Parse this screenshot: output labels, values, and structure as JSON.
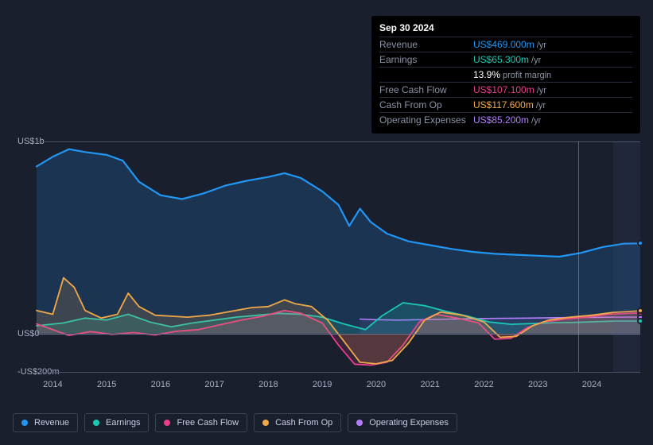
{
  "tooltip": {
    "title": "Sep 30 2024",
    "rows": [
      {
        "label": "Revenue",
        "value": "US$469.000m",
        "color": "#2196f3",
        "suffix": "/yr"
      },
      {
        "label": "Earnings",
        "value": "US$65.300m",
        "color": "#1bc6b4",
        "suffix": "/yr"
      },
      {
        "label": "",
        "value": "13.9%",
        "color": "#ffffff",
        "suffix": "profit margin"
      },
      {
        "label": "Free Cash Flow",
        "value": "US$107.100m",
        "color": "#e83e8c",
        "suffix": "/yr"
      },
      {
        "label": "Cash From Op",
        "value": "US$117.600m",
        "color": "#f0a848",
        "suffix": "/yr"
      },
      {
        "label": "Operating Expenses",
        "value": "US$85.200m",
        "color": "#b47cff",
        "suffix": "/yr"
      }
    ]
  },
  "chart": {
    "background": "#1a1f2e",
    "y_min": -200,
    "y_max": 1000,
    "y_ticks": [
      {
        "v": 1000,
        "label": "US$1b"
      },
      {
        "v": 0,
        "label": "US$0"
      },
      {
        "v": -200,
        "label": "-US$200m"
      }
    ],
    "x_min": 2013.7,
    "x_max": 2024.9,
    "x_ticks": [
      2014,
      2015,
      2016,
      2017,
      2018,
      2019,
      2020,
      2021,
      2022,
      2023,
      2024
    ],
    "future_start": 2024.4,
    "ref_x": 2023.75,
    "series": [
      {
        "name": "Revenue",
        "color": "#2196f3",
        "fill": "rgba(33,150,243,0.18)",
        "width": 2.2,
        "points": [
          [
            2013.7,
            870
          ],
          [
            2014.0,
            920
          ],
          [
            2014.3,
            960
          ],
          [
            2014.6,
            945
          ],
          [
            2015.0,
            930
          ],
          [
            2015.3,
            900
          ],
          [
            2015.6,
            790
          ],
          [
            2016.0,
            720
          ],
          [
            2016.4,
            700
          ],
          [
            2016.8,
            730
          ],
          [
            2017.2,
            770
          ],
          [
            2017.6,
            795
          ],
          [
            2018.0,
            815
          ],
          [
            2018.3,
            835
          ],
          [
            2018.6,
            810
          ],
          [
            2019.0,
            740
          ],
          [
            2019.3,
            670
          ],
          [
            2019.5,
            560
          ],
          [
            2019.7,
            650
          ],
          [
            2019.9,
            580
          ],
          [
            2020.2,
            520
          ],
          [
            2020.6,
            480
          ],
          [
            2021.0,
            460
          ],
          [
            2021.4,
            440
          ],
          [
            2021.8,
            425
          ],
          [
            2022.2,
            415
          ],
          [
            2022.6,
            410
          ],
          [
            2023.0,
            405
          ],
          [
            2023.4,
            400
          ],
          [
            2023.8,
            420
          ],
          [
            2024.2,
            450
          ],
          [
            2024.6,
            468
          ],
          [
            2024.9,
            469
          ]
        ]
      },
      {
        "name": "Operating Expenses",
        "color": "#b47cff",
        "fill": "rgba(180,124,255,0.10)",
        "width": 1.6,
        "points": [
          [
            2019.7,
            75
          ],
          [
            2020.0,
            72
          ],
          [
            2020.4,
            70
          ],
          [
            2020.8,
            72
          ],
          [
            2021.2,
            74
          ],
          [
            2021.6,
            76
          ],
          [
            2022.0,
            78
          ],
          [
            2022.4,
            79
          ],
          [
            2022.8,
            80
          ],
          [
            2023.2,
            82
          ],
          [
            2023.6,
            83
          ],
          [
            2024.0,
            84
          ],
          [
            2024.4,
            85
          ],
          [
            2024.9,
            85
          ]
        ]
      },
      {
        "name": "Earnings",
        "color": "#1bc6b4",
        "fill": "rgba(27,198,180,0.18)",
        "width": 1.8,
        "points": [
          [
            2013.7,
            40
          ],
          [
            2014.2,
            55
          ],
          [
            2014.6,
            80
          ],
          [
            2015.0,
            70
          ],
          [
            2015.4,
            100
          ],
          [
            2015.8,
            60
          ],
          [
            2016.2,
            35
          ],
          [
            2016.6,
            55
          ],
          [
            2017.0,
            70
          ],
          [
            2017.4,
            85
          ],
          [
            2017.8,
            95
          ],
          [
            2018.2,
            105
          ],
          [
            2018.6,
            100
          ],
          [
            2019.0,
            85
          ],
          [
            2019.4,
            50
          ],
          [
            2019.8,
            20
          ],
          [
            2020.1,
            90
          ],
          [
            2020.5,
            160
          ],
          [
            2020.9,
            145
          ],
          [
            2021.3,
            115
          ],
          [
            2021.7,
            90
          ],
          [
            2022.1,
            60
          ],
          [
            2022.5,
            48
          ],
          [
            2022.9,
            52
          ],
          [
            2023.3,
            56
          ],
          [
            2023.7,
            58
          ],
          [
            2024.1,
            62
          ],
          [
            2024.5,
            65
          ],
          [
            2024.9,
            65
          ]
        ]
      },
      {
        "name": "Free Cash Flow",
        "color": "#e83e8c",
        "fill": "rgba(232,62,140,0.14)",
        "width": 1.8,
        "points": [
          [
            2013.7,
            50
          ],
          [
            2014.0,
            20
          ],
          [
            2014.3,
            -10
          ],
          [
            2014.7,
            10
          ],
          [
            2015.1,
            -5
          ],
          [
            2015.5,
            5
          ],
          [
            2015.9,
            -8
          ],
          [
            2016.3,
            12
          ],
          [
            2016.7,
            20
          ],
          [
            2017.1,
            45
          ],
          [
            2017.5,
            70
          ],
          [
            2017.9,
            90
          ],
          [
            2018.3,
            120
          ],
          [
            2018.6,
            105
          ],
          [
            2019.0,
            55
          ],
          [
            2019.3,
            -60
          ],
          [
            2019.6,
            -160
          ],
          [
            2019.9,
            -165
          ],
          [
            2020.2,
            -150
          ],
          [
            2020.5,
            -60
          ],
          [
            2020.8,
            60
          ],
          [
            2021.1,
            100
          ],
          [
            2021.5,
            80
          ],
          [
            2021.9,
            55
          ],
          [
            2022.2,
            -30
          ],
          [
            2022.5,
            -25
          ],
          [
            2022.8,
            30
          ],
          [
            2023.1,
            60
          ],
          [
            2023.5,
            75
          ],
          [
            2023.9,
            85
          ],
          [
            2024.3,
            100
          ],
          [
            2024.9,
            107
          ]
        ]
      },
      {
        "name": "Cash From Op",
        "color": "#f0a848",
        "fill": "rgba(240,168,72,0.16)",
        "width": 1.8,
        "points": [
          [
            2013.7,
            120
          ],
          [
            2014.0,
            100
          ],
          [
            2014.2,
            290
          ],
          [
            2014.4,
            240
          ],
          [
            2014.6,
            120
          ],
          [
            2014.9,
            80
          ],
          [
            2015.2,
            100
          ],
          [
            2015.4,
            210
          ],
          [
            2015.6,
            140
          ],
          [
            2015.9,
            95
          ],
          [
            2016.2,
            90
          ],
          [
            2016.5,
            85
          ],
          [
            2016.9,
            95
          ],
          [
            2017.3,
            115
          ],
          [
            2017.7,
            135
          ],
          [
            2018.0,
            140
          ],
          [
            2018.3,
            175
          ],
          [
            2018.5,
            155
          ],
          [
            2018.8,
            140
          ],
          [
            2019.1,
            70
          ],
          [
            2019.4,
            -40
          ],
          [
            2019.7,
            -150
          ],
          [
            2020.0,
            -158
          ],
          [
            2020.3,
            -140
          ],
          [
            2020.6,
            -50
          ],
          [
            2020.9,
            70
          ],
          [
            2021.2,
            112
          ],
          [
            2021.6,
            95
          ],
          [
            2022.0,
            60
          ],
          [
            2022.3,
            -20
          ],
          [
            2022.6,
            -15
          ],
          [
            2022.9,
            40
          ],
          [
            2023.2,
            70
          ],
          [
            2023.6,
            85
          ],
          [
            2024.0,
            95
          ],
          [
            2024.4,
            110
          ],
          [
            2024.9,
            118
          ]
        ]
      }
    ],
    "legend": [
      {
        "name": "Revenue",
        "color": "#2196f3"
      },
      {
        "name": "Earnings",
        "color": "#1bc6b4"
      },
      {
        "name": "Free Cash Flow",
        "color": "#e83e8c"
      },
      {
        "name": "Cash From Op",
        "color": "#f0a848"
      },
      {
        "name": "Operating Expenses",
        "color": "#b47cff"
      }
    ]
  }
}
